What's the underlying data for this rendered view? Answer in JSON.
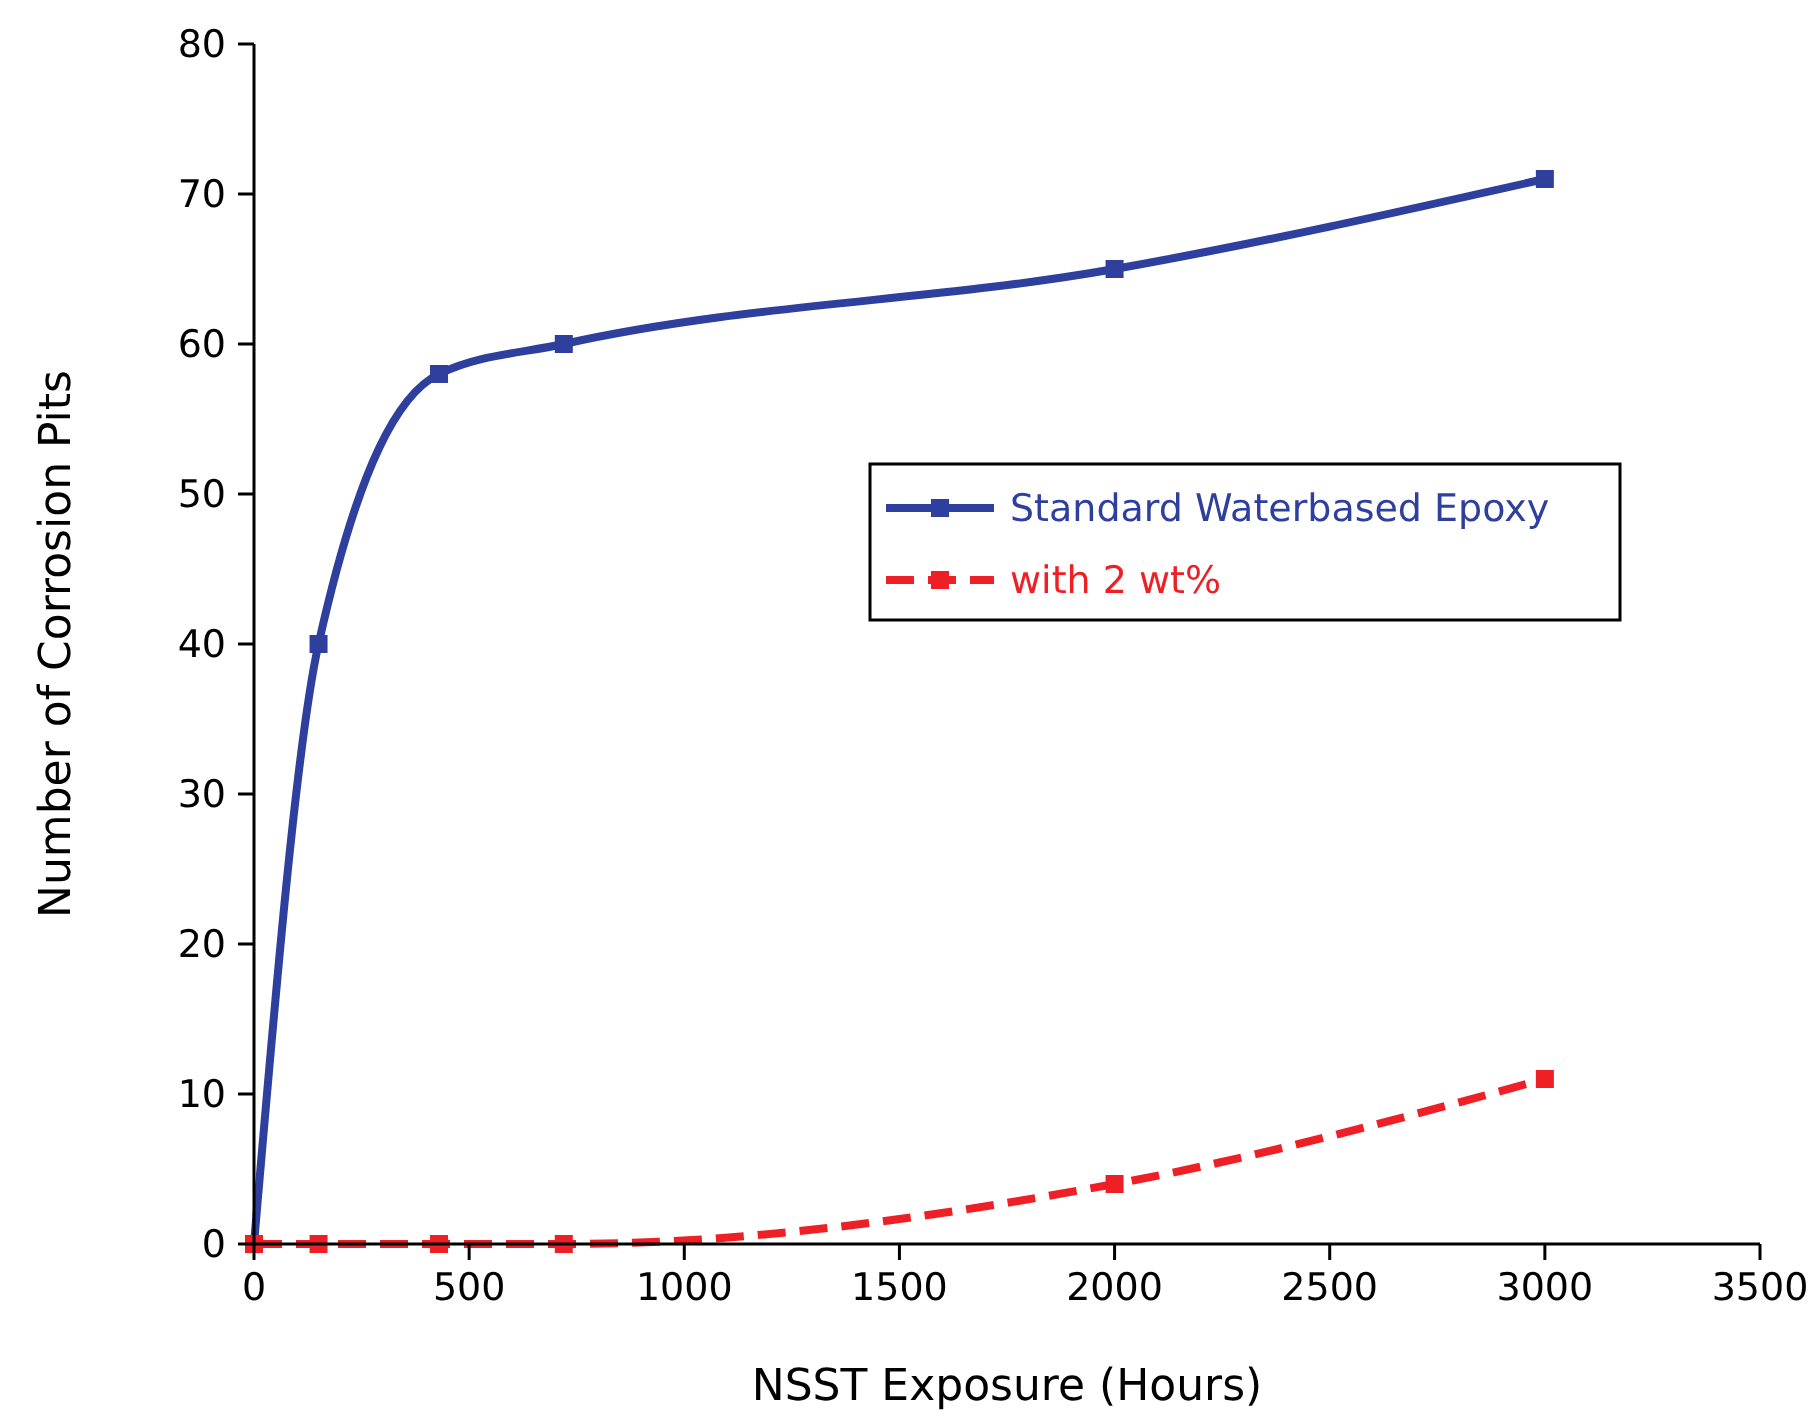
{
  "chart_data": {
    "type": "line",
    "xlabel": "NSST Exposure (Hours)",
    "ylabel": "Number of Corrosion Pits",
    "x": [
      0,
      150,
      430,
      720,
      2000,
      3000
    ],
    "series": [
      {
        "name": "Standard Waterbased Epoxy",
        "color": "#2e3f9e",
        "values": [
          0,
          40,
          58,
          60,
          65,
          71
        ],
        "line_style": "solid"
      },
      {
        "name": "with 2 wt%",
        "color": "#ee2026",
        "values": [
          0,
          0,
          0,
          0,
          4,
          11
        ],
        "line_style": "dashed"
      }
    ],
    "xlim": [
      0,
      3500
    ],
    "xticks": [
      0,
      500,
      1000,
      1500,
      2000,
      2500,
      3000,
      3500
    ],
    "ylim": [
      0,
      80
    ],
    "yticks": [
      0,
      10,
      20,
      30,
      40,
      50,
      60,
      70,
      80
    ],
    "grid": false,
    "legend": "right",
    "marker": "square"
  }
}
